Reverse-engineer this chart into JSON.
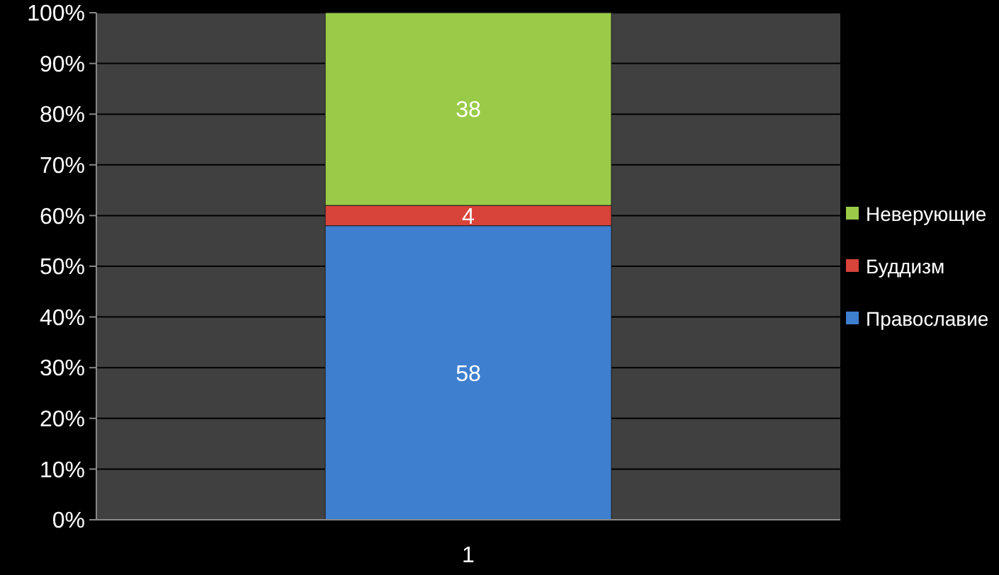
{
  "chart_data": {
    "type": "bar",
    "stacked": true,
    "categories": [
      "1"
    ],
    "series": [
      {
        "name": "Православие",
        "color": "#3f7fd0",
        "values": [
          58
        ]
      },
      {
        "name": "Буддизм",
        "color": "#d8433a",
        "values": [
          4
        ]
      },
      {
        "name": "Неверующие",
        "color": "#9acb48",
        "values": [
          38
        ]
      }
    ],
    "ylim": [
      0,
      100
    ],
    "yticks": [
      {
        "value": 0,
        "label": "0%"
      },
      {
        "value": 10,
        "label": "10%"
      },
      {
        "value": 20,
        "label": "20%"
      },
      {
        "value": 30,
        "label": "30%"
      },
      {
        "value": 40,
        "label": "40%"
      },
      {
        "value": 50,
        "label": "50%"
      },
      {
        "value": 60,
        "label": "60%"
      },
      {
        "value": 70,
        "label": "70%"
      },
      {
        "value": 80,
        "label": "80%"
      },
      {
        "value": 90,
        "label": "90%"
      },
      {
        "value": 100,
        "label": "100%"
      }
    ],
    "grid": "y",
    "legend": "right",
    "data_labels": true
  }
}
